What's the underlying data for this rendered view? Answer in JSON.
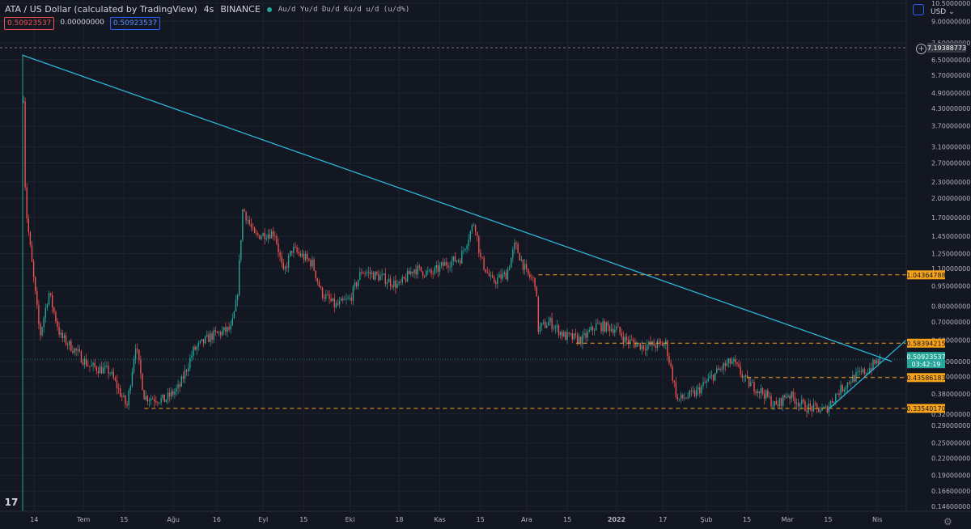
{
  "header": {
    "symbol_title": "ATA / US Dollar (calculated by TradingView)",
    "interval": "4s",
    "exchange": "BINANCE",
    "flags": "Au/d Yu/d Du/d Ku/d u/d (u/d%)",
    "ohlc_open": "0.50923537",
    "ohlc_change": "0.00000000",
    "ohlc_close": "0.50923537",
    "currency": "USD"
  },
  "colors": {
    "background": "#131722",
    "up": "#26a69a",
    "down": "#ef5350",
    "trendline": "#2bb6d6",
    "level_line": "#f7a21b",
    "last_price": "#26a69a"
  },
  "chart_data": {
    "type": "candlestick",
    "y_scale": "log",
    "ylim": [
      0.14,
      10.5
    ],
    "y_ticks": [
      "10.50000000",
      "9.00000000",
      "7.50000000",
      "6.50000000",
      "5.70000000",
      "4.90000000",
      "4.30000000",
      "3.70000000",
      "3.10000000",
      "2.70000000",
      "2.30000000",
      "2.00000000",
      "1.70000000",
      "1.45000000",
      "1.25000000",
      "1.10000000",
      "0.95000000",
      "0.80000000",
      "0.70000000",
      "0.60000000",
      "0.50000000",
      "0.44000000",
      "0.38000000",
      "0.32000000",
      "0.29000000",
      "0.25000000",
      "0.22000000",
      "0.19000000",
      "0.16600000",
      "0.14600000"
    ],
    "x_ticks": [
      "14",
      "Tem",
      "15",
      "Ağu",
      "16",
      "Eyl",
      "15",
      "Eki",
      "18",
      "Kas",
      "15",
      "Ara",
      "15",
      "2022",
      "17",
      "Şub",
      "15",
      "Mar",
      "15",
      "Nis"
    ],
    "x_tick_dates": [
      "2021-06-14",
      "2021-07-01",
      "2021-07-15",
      "2021-08-01",
      "2021-08-16",
      "2021-09-01",
      "2021-09-15",
      "2021-10-01",
      "2021-10-18",
      "2021-11-01",
      "2021-11-15",
      "2021-12-01",
      "2021-12-15",
      "2022-01-01",
      "2022-01-17",
      "2022-02-01",
      "2022-02-15",
      "2022-03-01",
      "2022-03-15",
      "2022-04-01"
    ],
    "date_range": [
      "2021-06-10",
      "2022-04-11"
    ],
    "price_path": [
      [
        "2021-06-10",
        6.8
      ],
      [
        "2021-06-11",
        1.9
      ],
      [
        "2021-06-13",
        1.2
      ],
      [
        "2021-06-16",
        0.62
      ],
      [
        "2021-06-19",
        0.9
      ],
      [
        "2021-06-23",
        0.62
      ],
      [
        "2021-06-28",
        0.55
      ],
      [
        "2021-07-03",
        0.48
      ],
      [
        "2021-07-10",
        0.46
      ],
      [
        "2021-07-16",
        0.34
      ],
      [
        "2021-07-19",
        0.58
      ],
      [
        "2021-07-22",
        0.37
      ],
      [
        "2021-07-29",
        0.36
      ],
      [
        "2021-08-03",
        0.4
      ],
      [
        "2021-08-08",
        0.55
      ],
      [
        "2021-08-14",
        0.62
      ],
      [
        "2021-08-21",
        0.66
      ],
      [
        "2021-08-23",
        0.85
      ],
      [
        "2021-08-25",
        1.85
      ],
      [
        "2021-08-29",
        1.45
      ],
      [
        "2021-09-05",
        1.5
      ],
      [
        "2021-09-08",
        1.05
      ],
      [
        "2021-09-11",
        1.3
      ],
      [
        "2021-09-18",
        1.15
      ],
      [
        "2021-09-21",
        0.9
      ],
      [
        "2021-09-26",
        0.8
      ],
      [
        "2021-10-01",
        0.85
      ],
      [
        "2021-10-05",
        1.08
      ],
      [
        "2021-10-12",
        1.02
      ],
      [
        "2021-10-18",
        0.95
      ],
      [
        "2021-10-23",
        1.1
      ],
      [
        "2021-10-29",
        1.05
      ],
      [
        "2021-11-03",
        1.15
      ],
      [
        "2021-11-08",
        1.2
      ],
      [
        "2021-11-13",
        1.65
      ],
      [
        "2021-11-15",
        1.2
      ],
      [
        "2021-11-19",
        0.98
      ],
      [
        "2021-11-24",
        1.05
      ],
      [
        "2021-11-27",
        1.35
      ],
      [
        "2021-12-01",
        1.05
      ],
      [
        "2021-12-04",
        0.98
      ],
      [
        "2021-12-05",
        0.66
      ],
      [
        "2021-12-09",
        0.7
      ],
      [
        "2021-12-14",
        0.62
      ],
      [
        "2021-12-20",
        0.6
      ],
      [
        "2021-12-25",
        0.68
      ],
      [
        "2022-01-01",
        0.66
      ],
      [
        "2022-01-04",
        0.6
      ],
      [
        "2022-01-10",
        0.57
      ],
      [
        "2022-01-18",
        0.58
      ],
      [
        "2022-01-22",
        0.36
      ],
      [
        "2022-01-28",
        0.38
      ],
      [
        "2022-02-03",
        0.44
      ],
      [
        "2022-02-07",
        0.48
      ],
      [
        "2022-02-10",
        0.5
      ],
      [
        "2022-02-15",
        0.42
      ],
      [
        "2022-02-21",
        0.38
      ],
      [
        "2022-02-25",
        0.34
      ],
      [
        "2022-03-01",
        0.38
      ],
      [
        "2022-03-07",
        0.34
      ],
      [
        "2022-03-14",
        0.33
      ],
      [
        "2022-03-18",
        0.38
      ],
      [
        "2022-03-23",
        0.43
      ],
      [
        "2022-03-28",
        0.46
      ],
      [
        "2022-04-01",
        0.5
      ],
      [
        "2022-04-02",
        0.509
      ]
    ],
    "horizontal_levels": [
      {
        "value": 1.04364788,
        "label": "1.04364788",
        "from": "2021-12-05"
      },
      {
        "value": 0.58394215,
        "label": "0.58394215",
        "from": "2021-12-18"
      },
      {
        "value": 0.43586183,
        "label": "0.43586183",
        "from": "2022-02-15"
      },
      {
        "value": 0.3354017,
        "label": "0.33540170",
        "from": "2021-07-22"
      }
    ],
    "crosshair_level": {
      "value": 7.19388773,
      "label": "7.19388773"
    },
    "last_price": {
      "value": 0.50923537,
      "label": "0.50923537",
      "countdown": "03:42:19"
    },
    "trendlines": [
      {
        "from": [
          "2021-06-10",
          6.75
        ],
        "to": [
          "2022-04-06",
          0.5
        ]
      },
      {
        "from": [
          "2022-03-15",
          0.332
        ],
        "to": [
          "2022-04-11",
          0.6
        ]
      }
    ]
  }
}
